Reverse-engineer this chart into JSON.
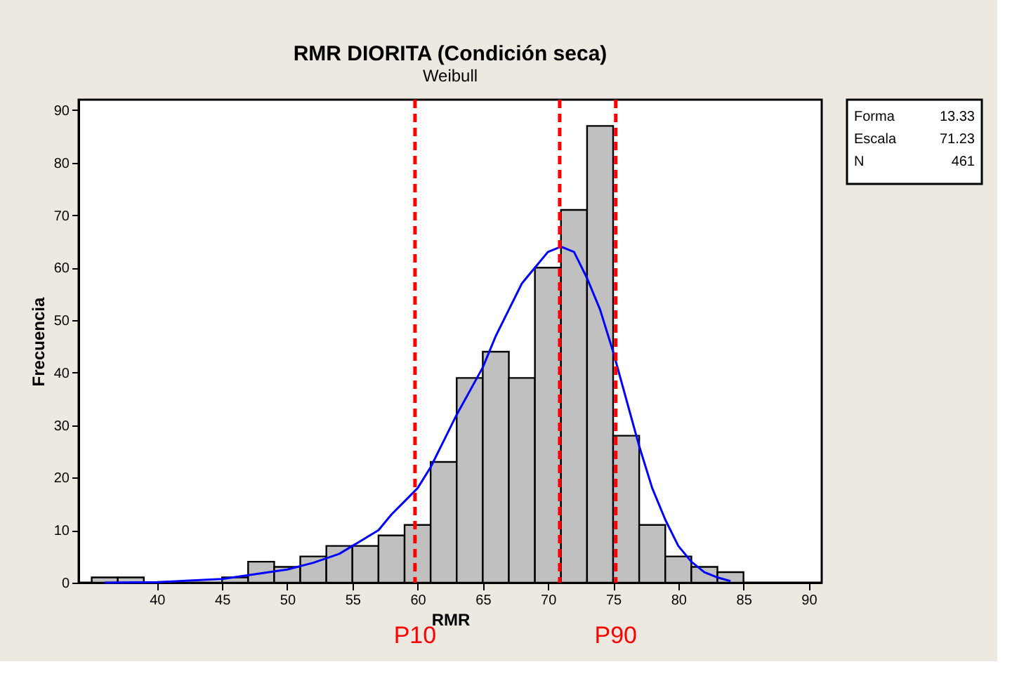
{
  "chart_data": {
    "type": "histogram",
    "title": "RMR DIORITA (Condición seca)",
    "subtitle": "Weibull",
    "xlabel": "RMR",
    "ylabel": "Frecuencia",
    "bins": [
      35,
      37,
      39,
      41,
      43,
      45,
      47,
      49,
      51,
      53,
      55,
      57,
      59,
      61,
      63,
      65,
      67,
      69,
      71,
      73,
      75,
      77,
      79,
      81,
      83,
      85
    ],
    "values": [
      1,
      1,
      0,
      0,
      0,
      1,
      4,
      3,
      5,
      7,
      7,
      9,
      11,
      23,
      39,
      44,
      39,
      60,
      71,
      87,
      28,
      11,
      5,
      3,
      2
    ],
    "color": "#c0c0c0",
    "series": [
      {
        "type": "line",
        "color": "#0000ff",
        "x": [
          36,
          40,
          45,
          50,
          52,
          54,
          55,
          56,
          57,
          58,
          59,
          60,
          61,
          62,
          63,
          65,
          66,
          67,
          68,
          69,
          70,
          71,
          72,
          73,
          74,
          75,
          76,
          77,
          78,
          79,
          80,
          81,
          82,
          83,
          84
        ],
        "values": [
          0,
          0.1,
          0.7,
          2.5,
          3.8,
          5.5,
          7,
          8.5,
          10,
          13,
          15.5,
          18,
          22,
          27,
          32,
          41,
          47,
          52,
          57,
          60,
          63,
          64,
          63,
          58,
          52,
          44,
          35,
          26,
          18,
          12,
          7,
          4,
          2,
          1,
          0.3
        ]
      }
    ],
    "ref_lines": [
      {
        "axis": "x",
        "value": 59.8,
        "label": "P10",
        "color": "#ff0000",
        "line_style": "dashed"
      },
      {
        "axis": "x",
        "value": 70.9,
        "color": "#ff0000",
        "line_style": "dashed"
      },
      {
        "axis": "x",
        "value": 75.2,
        "label": "P90",
        "color": "#ff0000",
        "line_style": "dashed"
      }
    ],
    "annotations": [
      "Forma 13.33",
      "Escala 71.23",
      "N 461"
    ],
    "xlim": [
      34,
      91
    ],
    "xticks": [
      40,
      45,
      50,
      55,
      60,
      65,
      70,
      75,
      80,
      85,
      90
    ],
    "ylim": [
      0,
      92
    ],
    "yticks": [
      0,
      10,
      20,
      30,
      40,
      50,
      60,
      70,
      80,
      90
    ],
    "grid": false
  }
}
